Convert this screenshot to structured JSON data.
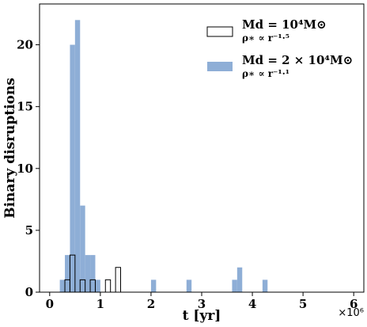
{
  "chart_data": {
    "type": "bar",
    "xlabel": "t [yr]",
    "ylabel": "Binary disruptions",
    "x_offset_label": "×10⁶",
    "x_scale": 1000000,
    "xlim": [
      -0.2,
      6.2
    ],
    "ylim": [
      0,
      23.3
    ],
    "xticks": [
      0,
      1,
      2,
      3,
      4,
      5,
      6
    ],
    "yticks": [
      0,
      5,
      10,
      15,
      20
    ],
    "bin_width": 0.1,
    "legend_position": "top-right",
    "grid": false,
    "series": [
      {
        "style": "outline",
        "legend_label_main": "Md = 10⁴M⊙",
        "legend_label_sub": "ρ∗ ∝ r⁻¹·⁵",
        "color": "#000000",
        "fill": "none",
        "bins": [
          {
            "x0": 0.3,
            "count": 1
          },
          {
            "x0": 0.4,
            "count": 3
          },
          {
            "x0": 0.5,
            "count": 0
          },
          {
            "x0": 0.6,
            "count": 1
          },
          {
            "x0": 0.7,
            "count": 0
          },
          {
            "x0": 0.8,
            "count": 1
          },
          {
            "x0": 0.9,
            "count": 0
          },
          {
            "x0": 1.0,
            "count": 0
          },
          {
            "x0": 1.1,
            "count": 1
          },
          {
            "x0": 1.3,
            "count": 2
          }
        ]
      },
      {
        "style": "filled",
        "legend_label_main": "Md = 2 × 10⁴M⊙",
        "legend_label_sub": "ρ∗ ∝ r⁻¹·¹",
        "color": "#8eaed6",
        "bins": [
          {
            "x0": 0.2,
            "count": 1
          },
          {
            "x0": 0.3,
            "count": 3
          },
          {
            "x0": 0.4,
            "count": 20
          },
          {
            "x0": 0.5,
            "count": 22
          },
          {
            "x0": 0.6,
            "count": 7
          },
          {
            "x0": 0.7,
            "count": 3
          },
          {
            "x0": 0.8,
            "count": 3
          },
          {
            "x0": 0.9,
            "count": 1
          },
          {
            "x0": 2.0,
            "count": 1
          },
          {
            "x0": 2.7,
            "count": 1
          },
          {
            "x0": 3.6,
            "count": 1
          },
          {
            "x0": 3.7,
            "count": 2
          },
          {
            "x0": 4.2,
            "count": 1
          }
        ]
      }
    ]
  }
}
